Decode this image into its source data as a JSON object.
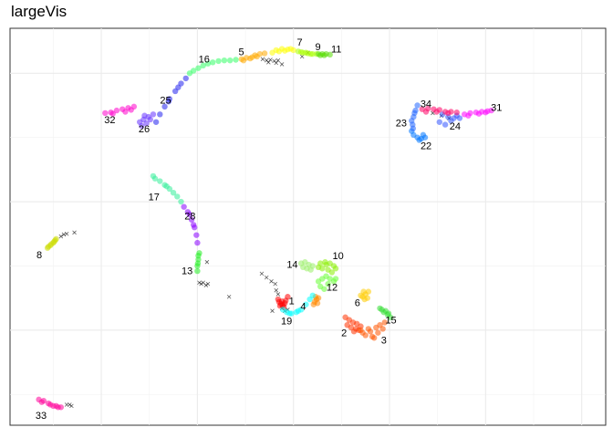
{
  "title": "largeVis",
  "chart_data": {
    "type": "scatter",
    "title": "largeVis",
    "xlabel": "",
    "ylabel": "",
    "grid": true,
    "legend": "none",
    "noise_color": "#000000",
    "clusters": [
      {
        "label": "1",
        "color": "#ff0000",
        "points": [
          [
            -1.5,
            -7.8
          ],
          [
            -1.3,
            -7.95
          ],
          [
            -1.1,
            -8.05
          ],
          [
            -1.4,
            -8.1
          ],
          [
            -1.2,
            -7.75
          ],
          [
            -0.9,
            -7.9
          ],
          [
            -1.0,
            -8.2
          ],
          [
            -1.6,
            -7.6
          ],
          [
            -0.8,
            -7.7
          ],
          [
            -0.6,
            -7.4
          ]
        ]
      },
      {
        "label": "2",
        "color": "#ff3300",
        "points": [
          [
            6.0,
            -9.8
          ],
          [
            6.5,
            -9.9
          ],
          [
            7.0,
            -9.7
          ],
          [
            6.3,
            -10.1
          ],
          [
            6.8,
            -10.0
          ],
          [
            5.6,
            -9.6
          ],
          [
            5.8,
            -9.2
          ],
          [
            6.2,
            -9.4
          ],
          [
            5.4,
            -9.0
          ],
          [
            6.6,
            -9.5
          ]
        ]
      },
      {
        "label": "3",
        "color": "#ff5500",
        "points": [
          [
            7.5,
            -10.4
          ],
          [
            8.2,
            -10.5
          ],
          [
            8.8,
            -10.2
          ],
          [
            9.3,
            -9.9
          ],
          [
            8.0,
            -10.1
          ],
          [
            8.6,
            -9.8
          ],
          [
            7.8,
            -9.9
          ],
          [
            9.0,
            -9.6
          ],
          [
            7.2,
            -10.2
          ],
          [
            8.4,
            -10.6
          ],
          [
            9.5,
            -9.4
          ],
          [
            7.0,
            -10.0
          ]
        ]
      },
      {
        "label": "4",
        "color": "#ff8800",
        "points": [
          [
            2.2,
            -7.8
          ],
          [
            2.4,
            -7.6
          ],
          [
            2.1,
            -8.0
          ],
          [
            2.6,
            -7.5
          ],
          [
            2.3,
            -7.4
          ],
          [
            2.5,
            -7.9
          ]
        ]
      },
      {
        "label": "5",
        "color": "#ffaa00",
        "points": [
          [
            -5.4,
            11.1
          ],
          [
            -4.9,
            11.2
          ],
          [
            -4.5,
            11.15
          ],
          [
            -4.0,
            11.4
          ],
          [
            -3.5,
            11.5
          ],
          [
            -3.0,
            11.55
          ],
          [
            -5.2,
            11.0
          ],
          [
            -3.8,
            11.3
          ],
          [
            -4.3,
            11.25
          ]
        ]
      },
      {
        "label": "6",
        "color": "#ffcc00",
        "points": [
          [
            7.2,
            -7.4
          ],
          [
            7.5,
            -7.2
          ],
          [
            7.8,
            -7.0
          ],
          [
            7.4,
            -7.6
          ],
          [
            7.0,
            -7.3
          ],
          [
            7.7,
            -7.5
          ],
          [
            7.3,
            -7.0
          ]
        ]
      },
      {
        "label": "7",
        "color": "#ffff00",
        "points": [
          [
            -1.8,
            11.8
          ],
          [
            -1.2,
            11.9
          ],
          [
            -0.6,
            11.85
          ],
          [
            0.0,
            11.8
          ],
          [
            -1.5,
            11.7
          ],
          [
            -0.9,
            11.75
          ],
          [
            -0.3,
            11.9
          ],
          [
            -2.2,
            11.6
          ]
        ]
      },
      {
        "label": "8",
        "color": "#ccdd00",
        "points": [
          [
            -25.6,
            -3.6
          ],
          [
            -25.3,
            -3.4
          ],
          [
            -25.0,
            -3.2
          ],
          [
            -24.8,
            -3.0
          ],
          [
            -25.5,
            -3.5
          ],
          [
            -25.2,
            -3.3
          ],
          [
            -24.9,
            -3.1
          ],
          [
            -24.7,
            -2.9
          ]
        ]
      },
      {
        "label": "9",
        "color": "#aaff00",
        "points": [
          [
            0.5,
            11.7
          ],
          [
            1.0,
            11.6
          ],
          [
            1.5,
            11.55
          ],
          [
            2.0,
            11.5
          ],
          [
            2.4,
            11.5
          ],
          [
            0.8,
            11.65
          ],
          [
            1.3,
            11.6
          ],
          [
            1.8,
            11.5
          ]
        ]
      },
      {
        "label": "10",
        "color": "#88ee00",
        "points": [
          [
            2.8,
            -4.8
          ],
          [
            3.3,
            -4.7
          ],
          [
            3.8,
            -4.8
          ],
          [
            4.2,
            -5.0
          ],
          [
            3.0,
            -5.2
          ],
          [
            3.6,
            -5.3
          ],
          [
            4.0,
            -5.5
          ],
          [
            2.6,
            -5.1
          ],
          [
            3.4,
            -4.9
          ],
          [
            4.4,
            -5.2
          ]
        ]
      },
      {
        "label": "11",
        "color": "#55dd00",
        "points": [
          [
            2.6,
            11.5
          ],
          [
            3.0,
            11.5
          ],
          [
            3.4,
            11.5
          ],
          [
            3.8,
            11.45
          ],
          [
            2.8,
            11.4
          ],
          [
            3.2,
            11.4
          ]
        ]
      },
      {
        "label": "12",
        "color": "#66ff33",
        "points": [
          [
            2.6,
            -6.2
          ],
          [
            3.0,
            -6.0
          ],
          [
            3.4,
            -5.8
          ],
          [
            3.8,
            -6.0
          ],
          [
            4.2,
            -6.2
          ],
          [
            2.8,
            -6.6
          ],
          [
            3.6,
            -6.4
          ],
          [
            4.4,
            -6.0
          ],
          [
            3.2,
            -6.8
          ]
        ]
      },
      {
        "label": "13",
        "color": "#22ee22",
        "points": [
          [
            -9.8,
            -4.0
          ],
          [
            -9.9,
            -4.5
          ],
          [
            -10.0,
            -5.0
          ],
          [
            -10.0,
            -5.4
          ],
          [
            -9.9,
            -4.2
          ],
          [
            -9.95,
            -4.8
          ]
        ]
      },
      {
        "label": "14",
        "color": "#99ee66",
        "points": [
          [
            0.8,
            -4.8
          ],
          [
            1.2,
            -4.7
          ],
          [
            1.6,
            -4.9
          ],
          [
            2.0,
            -5.0
          ],
          [
            1.0,
            -5.1
          ],
          [
            1.4,
            -5.2
          ],
          [
            1.8,
            -5.3
          ]
        ]
      },
      {
        "label": "15",
        "color": "#33dd33",
        "points": [
          [
            9.2,
            -8.4
          ],
          [
            9.6,
            -8.5
          ],
          [
            9.9,
            -8.7
          ],
          [
            10.1,
            -9.0
          ],
          [
            9.4,
            -8.6
          ],
          [
            9.8,
            -8.8
          ],
          [
            9.0,
            -8.3
          ]
        ]
      },
      {
        "label": "16",
        "color": "#33ff66",
        "points": [
          [
            -10.4,
            10.2
          ],
          [
            -9.9,
            10.4
          ],
          [
            -9.4,
            10.6
          ],
          [
            -8.9,
            10.75
          ],
          [
            -8.4,
            10.85
          ],
          [
            -7.8,
            10.95
          ],
          [
            -7.2,
            11.0
          ],
          [
            -6.6,
            11.0
          ],
          [
            -6.0,
            11.05
          ],
          [
            -10.8,
            10.0
          ]
        ]
      },
      {
        "label": "17",
        "color": "#33ee99",
        "points": [
          [
            -14.4,
            1.8
          ],
          [
            -13.9,
            1.6
          ],
          [
            -13.4,
            1.3
          ],
          [
            -12.9,
            1.0
          ],
          [
            -12.5,
            0.7
          ],
          [
            -12.1,
            0.4
          ],
          [
            -11.7,
            0.0
          ],
          [
            -14.6,
            2.0
          ],
          [
            -13.2,
            1.2
          ]
        ]
      },
      {
        "label": "19",
        "color": "#00ffff",
        "points": [
          [
            1.3,
            -8.0
          ],
          [
            0.8,
            -8.4
          ],
          [
            0.3,
            -8.6
          ],
          [
            -0.2,
            -8.7
          ],
          [
            -0.7,
            -8.6
          ],
          [
            -1.1,
            -8.4
          ],
          [
            1.7,
            -7.6
          ],
          [
            2.0,
            -7.3
          ],
          [
            0.5,
            -8.5
          ],
          [
            -0.4,
            -8.7
          ]
        ]
      },
      {
        "label": "22",
        "color": "#0077ff",
        "points": [
          [
            12.5,
            5.2
          ],
          [
            12.9,
            5.0
          ],
          [
            13.3,
            4.9
          ],
          [
            13.7,
            5.0
          ],
          [
            12.3,
            5.5
          ],
          [
            13.1,
            4.8
          ],
          [
            13.5,
            5.2
          ]
        ]
      },
      {
        "label": "23",
        "color": "#2266ff",
        "points": [
          [
            12.4,
            6.0
          ],
          [
            12.5,
            6.6
          ],
          [
            12.7,
            7.1
          ],
          [
            12.9,
            7.5
          ],
          [
            12.3,
            6.3
          ],
          [
            12.6,
            6.9
          ],
          [
            12.45,
            5.7
          ]
        ]
      },
      {
        "label": "24",
        "color": "#3355ff",
        "points": [
          [
            15.5,
            6.8
          ],
          [
            16.1,
            6.6
          ],
          [
            16.7,
            6.5
          ],
          [
            17.3,
            6.5
          ],
          [
            15.2,
            6.2
          ],
          [
            15.8,
            6.0
          ],
          [
            16.4,
            6.3
          ],
          [
            17.0,
            6.7
          ]
        ]
      },
      {
        "label": "25",
        "color": "#2222ee",
        "points": [
          [
            -14.3,
            6.2
          ],
          [
            -13.9,
            6.8
          ],
          [
            -13.4,
            7.4
          ],
          [
            -12.9,
            8.0
          ],
          [
            -12.3,
            8.6
          ],
          [
            -11.7,
            9.2
          ],
          [
            -11.2,
            9.6
          ],
          [
            -13.0,
            7.8
          ],
          [
            -12.0,
            8.9
          ]
        ]
      },
      {
        "label": "26",
        "color": "#6633ff",
        "points": [
          [
            -16.0,
            6.2
          ],
          [
            -15.6,
            6.4
          ],
          [
            -15.1,
            6.6
          ],
          [
            -14.6,
            6.8
          ],
          [
            -15.8,
            5.9
          ],
          [
            -15.3,
            6.1
          ],
          [
            -14.9,
            6.4
          ],
          [
            -15.5,
            6.7
          ]
        ]
      },
      {
        "label": "28",
        "color": "#8800ff",
        "points": [
          [
            -11.4,
            -0.4
          ],
          [
            -11.0,
            -0.8
          ],
          [
            -10.6,
            -1.4
          ],
          [
            -10.3,
            -2.0
          ],
          [
            -10.1,
            -2.6
          ],
          [
            -10.0,
            -3.2
          ],
          [
            -10.8,
            -1.0
          ],
          [
            -10.4,
            -1.8
          ]
        ]
      },
      {
        "label": "31",
        "color": "#ff00ff",
        "points": [
          [
            17.8,
            6.8
          ],
          [
            18.4,
            6.9
          ],
          [
            19.0,
            6.95
          ],
          [
            19.6,
            7.0
          ],
          [
            20.2,
            7.05
          ],
          [
            20.6,
            7.1
          ],
          [
            18.2,
            6.7
          ],
          [
            19.3,
            6.85
          ],
          [
            20.0,
            6.95
          ]
        ]
      },
      {
        "label": "32",
        "color": "#ff00cc",
        "points": [
          [
            -19.6,
            6.9
          ],
          [
            -19.0,
            6.95
          ],
          [
            -18.4,
            7.1
          ],
          [
            -17.8,
            7.2
          ],
          [
            -17.2,
            7.3
          ],
          [
            -16.6,
            7.4
          ],
          [
            -18.8,
            6.85
          ],
          [
            -17.5,
            7.0
          ],
          [
            -16.9,
            7.15
          ]
        ]
      },
      {
        "label": "33",
        "color": "#ff0099",
        "points": [
          [
            -26.5,
            -15.4
          ],
          [
            -26.0,
            -15.5
          ],
          [
            -25.5,
            -15.7
          ],
          [
            -25.0,
            -15.9
          ],
          [
            -24.5,
            -16.0
          ],
          [
            -24.2,
            -16.0
          ],
          [
            -26.2,
            -15.6
          ],
          [
            -25.3,
            -15.8
          ],
          [
            -24.7,
            -15.9
          ]
        ]
      },
      {
        "label": "34",
        "color": "#ff0066",
        "points": [
          [
            13.4,
            7.2
          ],
          [
            14.0,
            7.25
          ],
          [
            14.6,
            7.2
          ],
          [
            15.2,
            7.15
          ],
          [
            15.8,
            7.0
          ],
          [
            16.4,
            7.0
          ],
          [
            17.0,
            6.95
          ],
          [
            13.8,
            7.0
          ],
          [
            14.9,
            7.0
          ],
          [
            16.1,
            6.9
          ]
        ]
      }
    ],
    "noise": [
      [
        -3.2,
        11.1
      ],
      [
        -2.8,
        11.0
      ],
      [
        -2.4,
        11.05
      ],
      [
        -2.0,
        10.95
      ],
      [
        -1.6,
        11.0
      ],
      [
        -1.2,
        10.7
      ],
      [
        -2.6,
        10.85
      ],
      [
        -1.8,
        10.8
      ],
      [
        1.5,
        11.6
      ],
      [
        0.9,
        11.3
      ],
      [
        -24.2,
        -2.7
      ],
      [
        -23.9,
        -2.55
      ],
      [
        -23.6,
        -2.5
      ],
      [
        -22.8,
        -2.4
      ],
      [
        -9.8,
        -6.3
      ],
      [
        -9.6,
        -6.4
      ],
      [
        -9.4,
        -6.3
      ],
      [
        -9.1,
        -6.5
      ],
      [
        -8.9,
        -6.4
      ],
      [
        -9.0,
        -4.7
      ],
      [
        -6.7,
        -7.4
      ],
      [
        -23.3,
        -15.8
      ],
      [
        -23.1,
        -15.9
      ],
      [
        -23.6,
        -15.8
      ],
      [
        -3.3,
        -5.6
      ],
      [
        -2.8,
        -5.9
      ],
      [
        -2.3,
        -6.2
      ],
      [
        -1.9,
        -6.4
      ],
      [
        -1.8,
        -6.9
      ],
      [
        -1.6,
        -7.2
      ],
      [
        -1.2,
        -8.3
      ],
      [
        -0.9,
        -8.5
      ],
      [
        -0.6,
        -8.4
      ],
      [
        -2.2,
        -8.5
      ],
      [
        14.5,
        6.9
      ],
      [
        15.4,
        6.7
      ],
      [
        16.2,
        6.5
      ]
    ]
  }
}
